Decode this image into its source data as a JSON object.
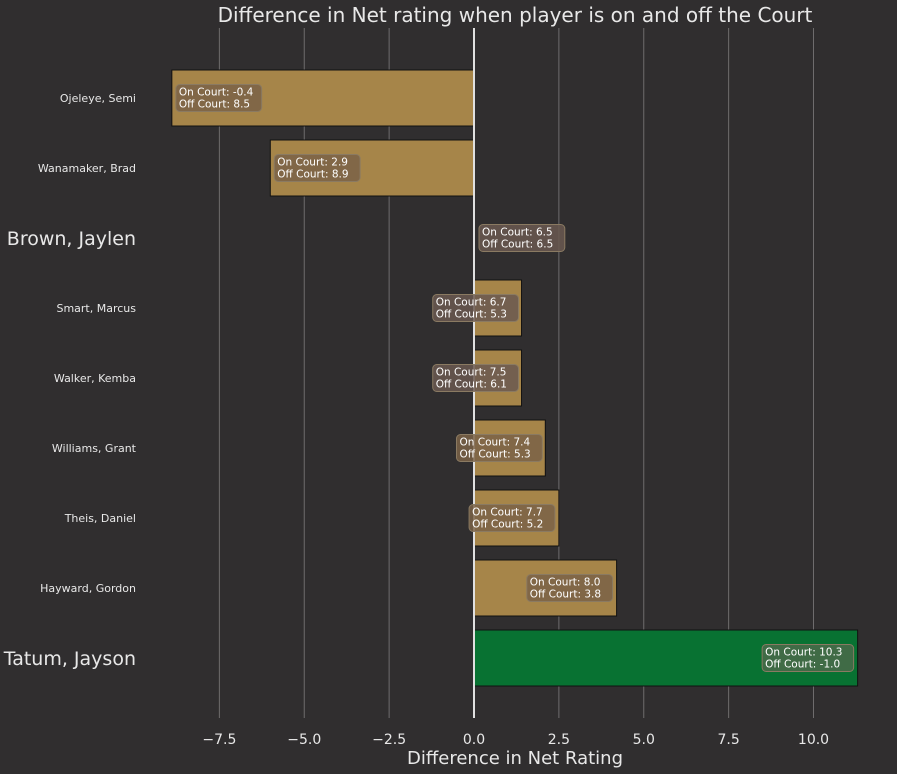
{
  "chart_data": {
    "type": "bar",
    "orientation": "horizontal",
    "title": "Difference in Net rating when player is on and off the Court",
    "xlabel": "Difference in Net Rating",
    "ylabel": "",
    "xlim": [
      -9.2,
      11.6
    ],
    "xticks": [
      -7.5,
      -5.0,
      -2.5,
      0.0,
      2.5,
      5.0,
      7.5,
      10.0
    ],
    "xtick_labels": [
      "−7.5",
      "−5.0",
      "−2.5",
      "0.0",
      "2.5",
      "5.0",
      "7.5",
      "10.0"
    ],
    "grid": "vertical",
    "categories": [
      "Ojeleye, Semi",
      "Wanamaker, Brad",
      "Brown, Jaylen",
      "Smart, Marcus",
      "Walker, Kemba",
      "Williams, Grant",
      "Theis, Daniel",
      "Hayward, Gordon",
      "Tatum, Jayson"
    ],
    "highlighted": [
      "Brown, Jaylen",
      "Tatum, Jayson"
    ],
    "values": [
      -8.9,
      -6.0,
      0.0,
      1.4,
      1.4,
      2.1,
      2.5,
      4.2,
      11.3
    ],
    "annotations": [
      {
        "on": "On Court: -0.4",
        "off": "Off Court: 8.5"
      },
      {
        "on": "On Court: 2.9",
        "off": "Off Court: 8.9"
      },
      {
        "on": "On Court: 6.5",
        "off": "Off Court: 6.5"
      },
      {
        "on": "On Court: 6.7",
        "off": "Off Court: 5.3"
      },
      {
        "on": "On Court: 7.5",
        "off": "Off Court: 6.1"
      },
      {
        "on": "On Court: 7.4",
        "off": "Off Court: 5.3"
      },
      {
        "on": "On Court: 7.7",
        "off": "Off Court: 5.2"
      },
      {
        "on": "On Court: 8.0",
        "off": "Off Court: 3.8"
      },
      {
        "on": "On Court: 10.3",
        "off": "Off Court: -1.0"
      }
    ],
    "colors": {
      "background": "#302e2f",
      "bar": "#a68549",
      "bar_highlight": "#087232",
      "annotation_box": "#7a6147",
      "annotation_box_neutral": "#6a5850",
      "annotation_box_highlight": "#4a6a4a"
    }
  }
}
